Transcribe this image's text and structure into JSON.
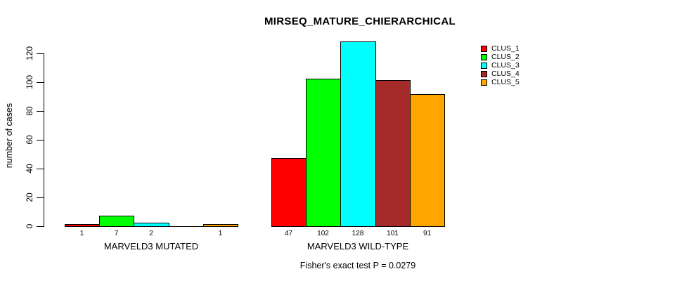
{
  "chart_data": {
    "type": "bar",
    "title": "MIRSEQ_MATURE_CHIERARCHICAL",
    "ylabel": "number of cases",
    "ylim": [
      0,
      128
    ],
    "yticks": [
      0,
      20,
      40,
      60,
      80,
      100,
      120
    ],
    "grid": false,
    "legend_position": "top-right-inside",
    "legend": [
      {
        "name": "CLUS_1",
        "color": "#FF0000"
      },
      {
        "name": "CLUS_2",
        "color": "#00FF00"
      },
      {
        "name": "CLUS_3",
        "color": "#00FFFF"
      },
      {
        "name": "CLUS_4",
        "color": "#A52A2A"
      },
      {
        "name": "CLUS_5",
        "color": "#FFA500"
      }
    ],
    "groups": [
      {
        "label": "MARVELD3 MUTATED",
        "values": [
          1,
          7,
          2,
          0,
          1
        ],
        "bar_labels": [
          "1",
          "7",
          "2",
          "",
          "1"
        ]
      },
      {
        "label": "MARVELD3 WILD-TYPE",
        "values": [
          47,
          102,
          128,
          101,
          91
        ],
        "bar_labels": [
          "47",
          "102",
          "128",
          "101",
          "91"
        ]
      }
    ],
    "annotation": "Fisher's exact test P = 0.0279"
  }
}
